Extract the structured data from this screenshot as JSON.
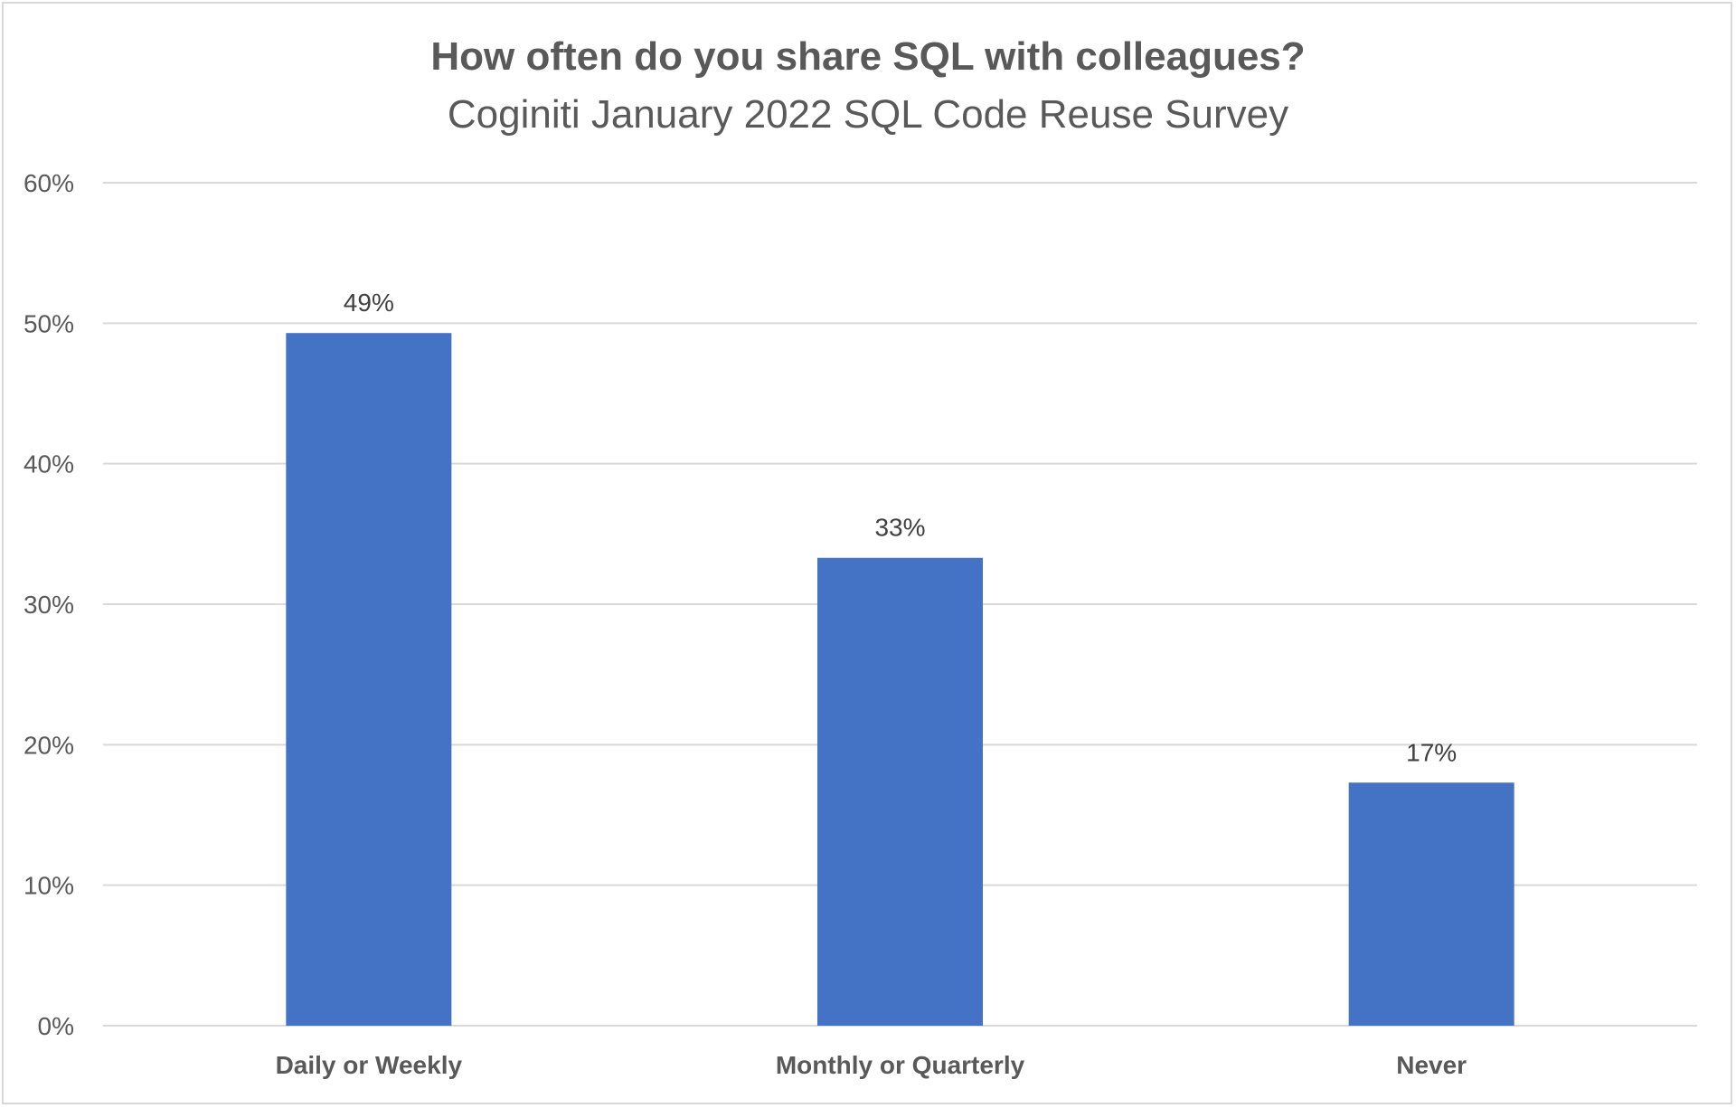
{
  "chart_data": {
    "type": "bar",
    "title": "How often do you share SQL with colleagues?",
    "subtitle": "Coginiti January 2022 SQL Code Reuse Survey",
    "categories": [
      "Daily or Weekly",
      "Monthly or Quarterly",
      "Never"
    ],
    "values": [
      49.3,
      33.3,
      17.3
    ],
    "data_labels": [
      "49%",
      "33%",
      "17%"
    ],
    "ylim": [
      0,
      60
    ],
    "yticks": [
      "0%",
      "10%",
      "20%",
      "30%",
      "40%",
      "50%",
      "60%"
    ],
    "xlabel": "",
    "ylabel": "",
    "grid": true,
    "legend": "none",
    "bar_color": "#4472c4",
    "grid_color": "#d9d9d9"
  }
}
